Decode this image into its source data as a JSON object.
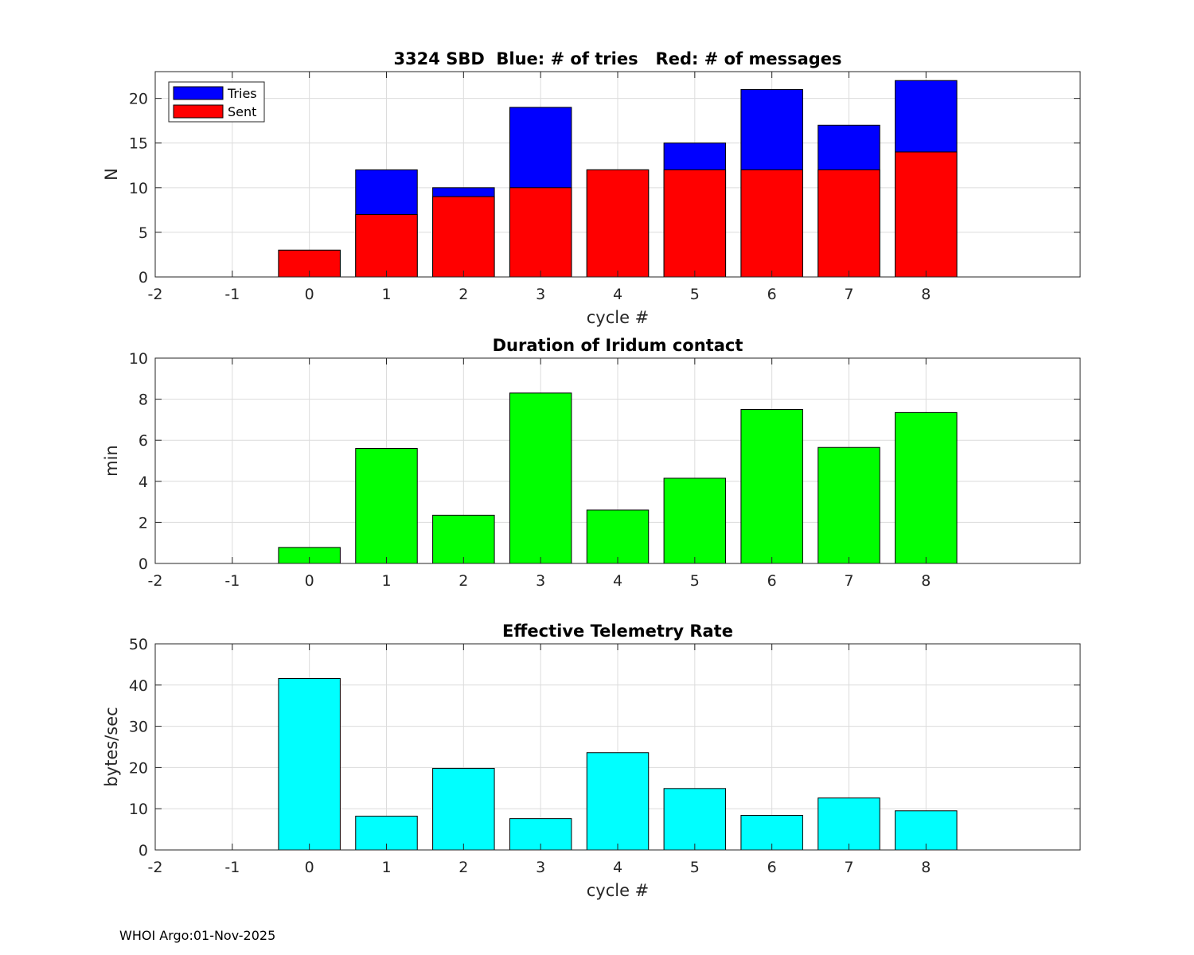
{
  "footer": "WHOI Argo:01-Nov-2025",
  "chart_data": [
    {
      "type": "bar",
      "title": "3324 SBD  Blue: # of tries   Red: # of messages",
      "xlabel": "cycle #",
      "ylabel": "N",
      "xlim": [
        -2,
        10
      ],
      "ylim": [
        0,
        23
      ],
      "xticks": [
        -2,
        -1,
        0,
        1,
        2,
        3,
        4,
        5,
        6,
        7,
        8
      ],
      "yticks": [
        0,
        5,
        10,
        15,
        20
      ],
      "grid": true,
      "legend": "top-left",
      "categories": [
        0,
        1,
        2,
        3,
        4,
        5,
        6,
        7,
        8
      ],
      "series": [
        {
          "name": "Tries",
          "color": "#0000ff",
          "values": [
            3,
            12,
            10,
            19,
            12,
            15,
            21,
            17,
            22
          ]
        },
        {
          "name": "Sent",
          "color": "#ff0000",
          "values": [
            3,
            7,
            9,
            10,
            12,
            12,
            12,
            12,
            14
          ]
        }
      ]
    },
    {
      "type": "bar",
      "title": "Duration of Iridum contact",
      "xlabel": "",
      "ylabel": "min",
      "xlim": [
        -2,
        10
      ],
      "ylim": [
        0,
        10
      ],
      "xticks": [
        -2,
        -1,
        0,
        1,
        2,
        3,
        4,
        5,
        6,
        7,
        8
      ],
      "yticks": [
        0,
        2,
        4,
        6,
        8,
        10
      ],
      "grid": true,
      "categories": [
        0,
        1,
        2,
        3,
        4,
        5,
        6,
        7,
        8
      ],
      "series": [
        {
          "name": "Duration",
          "color": "#00ff00",
          "values": [
            0.78,
            5.6,
            2.35,
            8.3,
            2.6,
            4.15,
            7.5,
            5.65,
            7.35
          ]
        }
      ]
    },
    {
      "type": "bar",
      "title": "Effective Telemetry Rate",
      "xlabel": "cycle #",
      "ylabel": "bytes/sec",
      "xlim": [
        -2,
        10
      ],
      "ylim": [
        0,
        50
      ],
      "xticks": [
        -2,
        -1,
        0,
        1,
        2,
        3,
        4,
        5,
        6,
        7,
        8
      ],
      "yticks": [
        0,
        10,
        20,
        30,
        40,
        50
      ],
      "grid": true,
      "categories": [
        0,
        1,
        2,
        3,
        4,
        5,
        6,
        7,
        8
      ],
      "series": [
        {
          "name": "Rate",
          "color": "#00ffff",
          "values": [
            41.6,
            8.2,
            19.8,
            7.6,
            23.6,
            14.9,
            8.4,
            12.6,
            9.5
          ]
        }
      ]
    }
  ]
}
